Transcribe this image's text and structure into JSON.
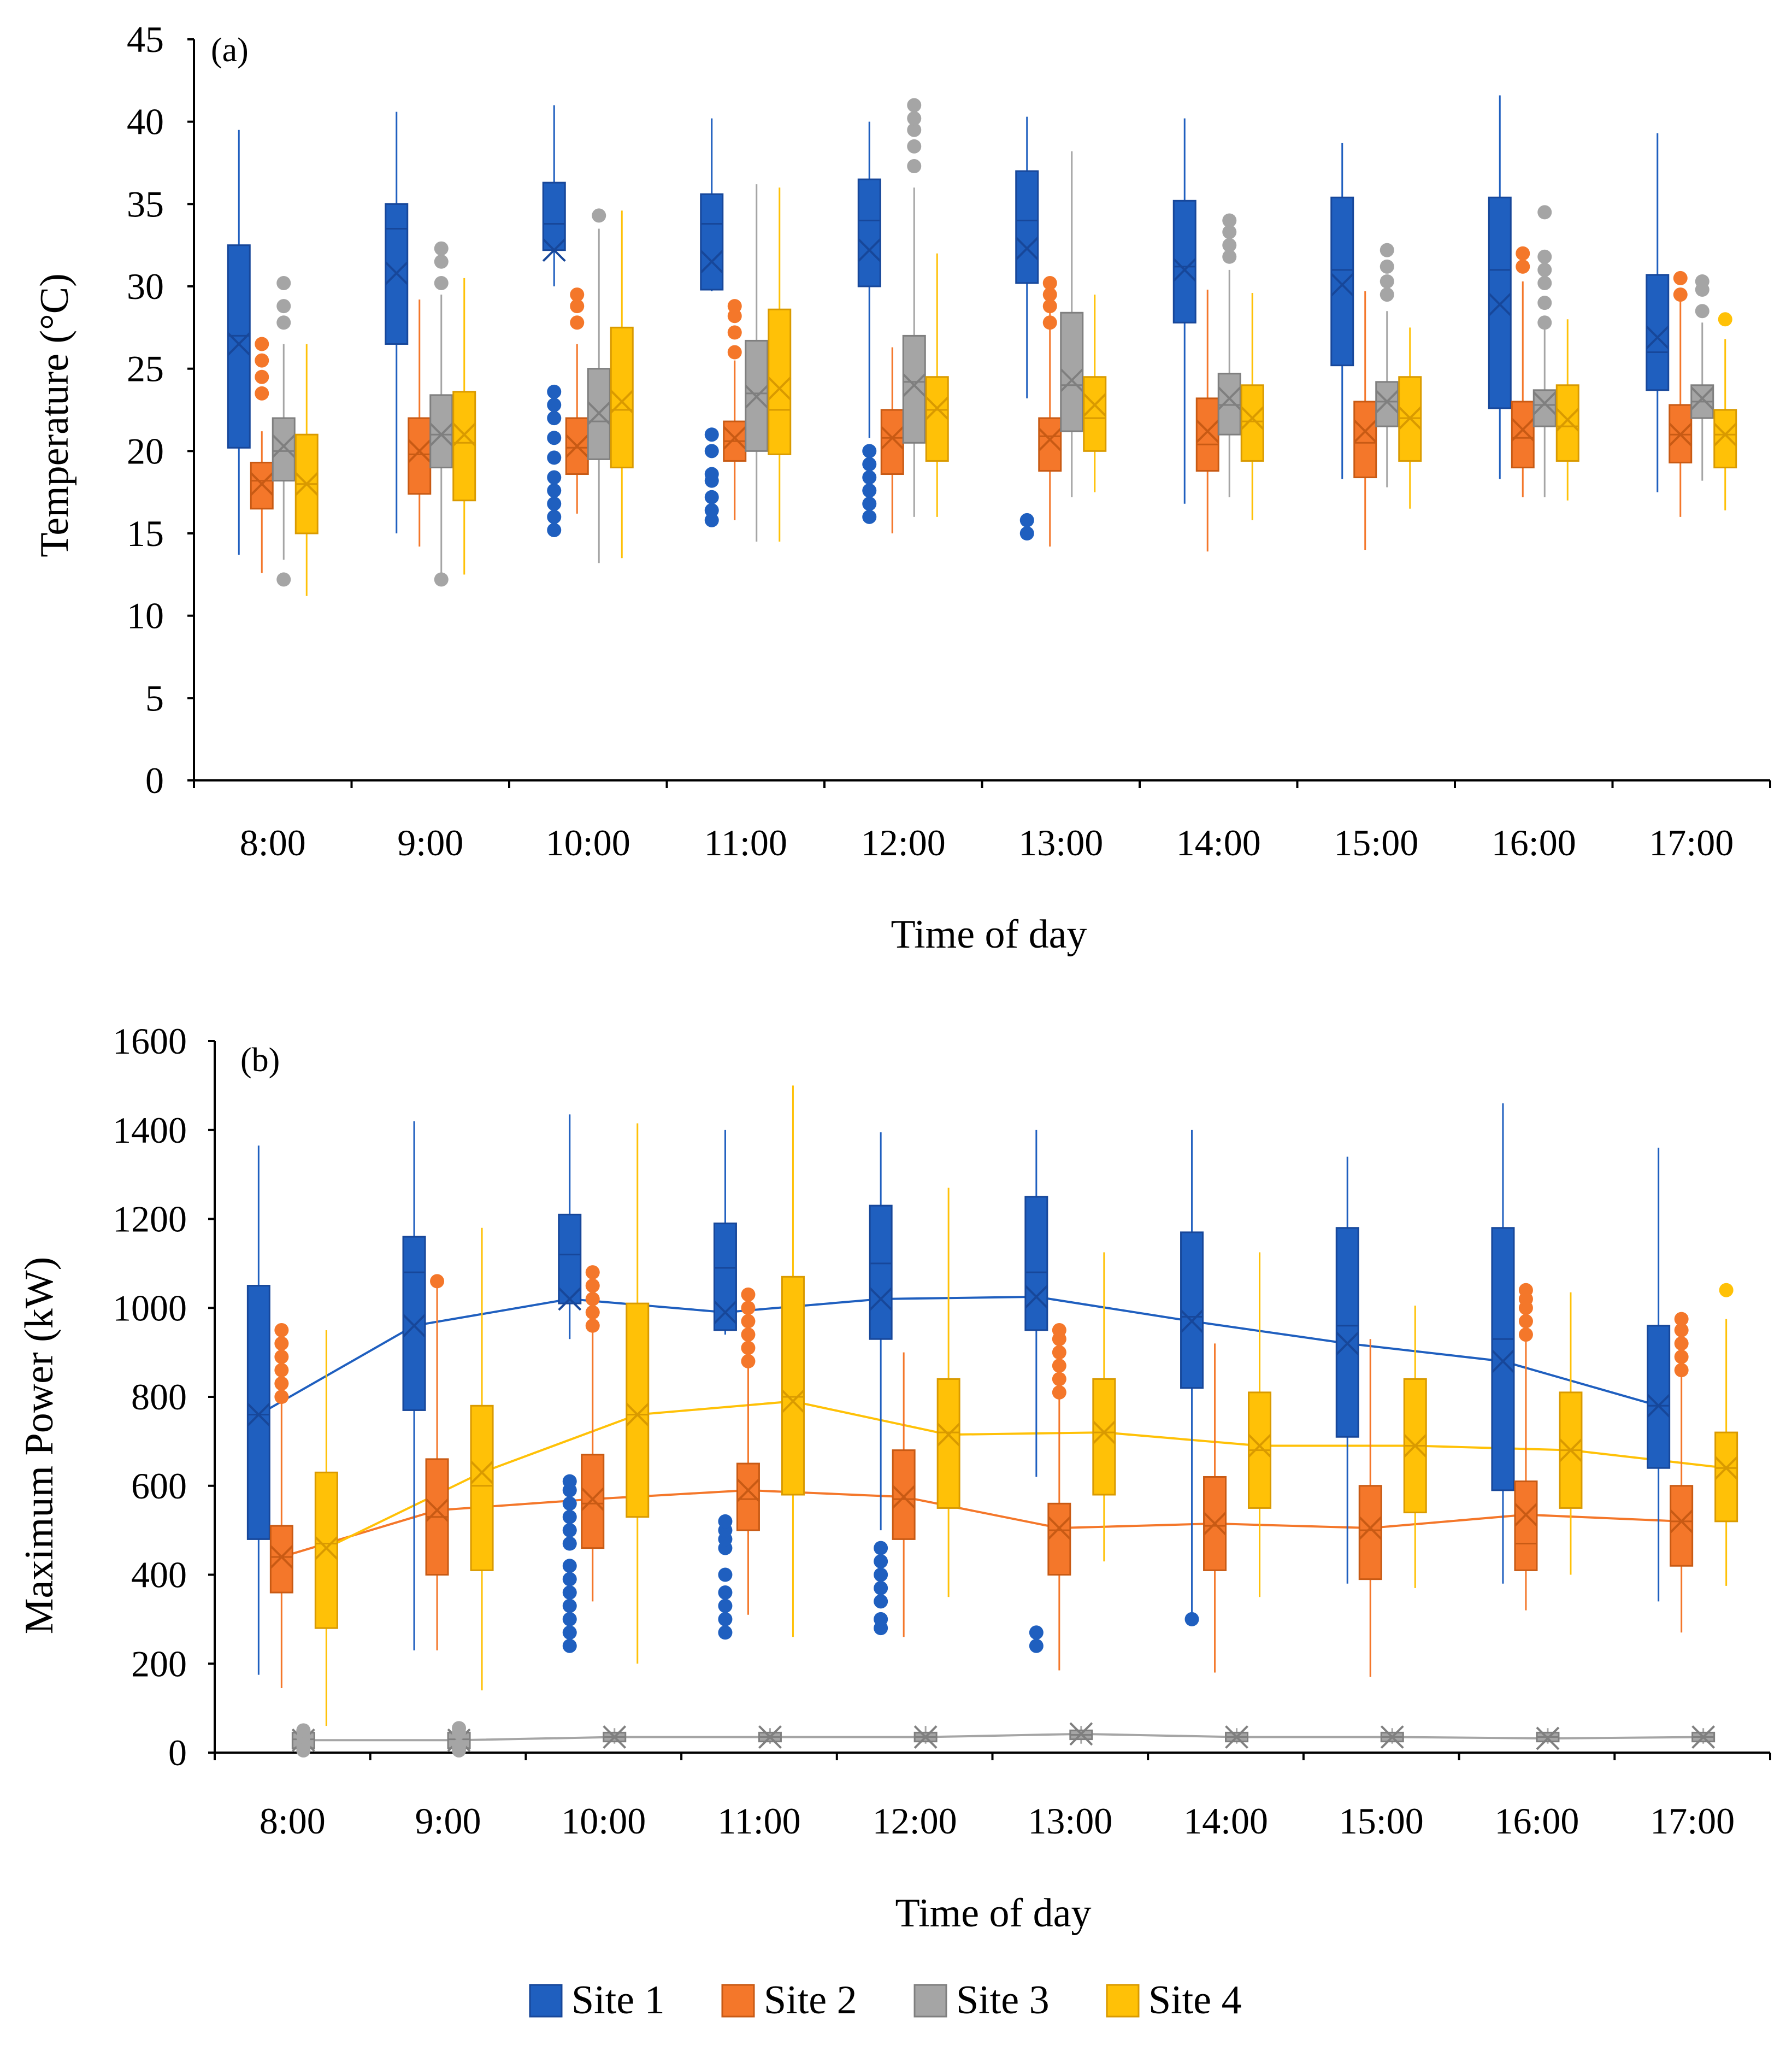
{
  "chart_data": [
    {
      "type": "box",
      "panel_label": "(a)",
      "xlabel": "Time of day",
      "ylabel": "Temperature (°C)",
      "ylim": [
        0,
        45
      ],
      "yticks": [
        0,
        5,
        10,
        15,
        20,
        25,
        30,
        35,
        40,
        45
      ],
      "categories": [
        "8:00",
        "9:00",
        "10:00",
        "11:00",
        "12:00",
        "13:00",
        "14:00",
        "15:00",
        "16:00",
        "17:00"
      ],
      "mean_line": false,
      "series": [
        {
          "name": "Site 1",
          "whisker_low": [
            13.7,
            15.0,
            30.0,
            29.7,
            20.8,
            23.2,
            16.8,
            18.3,
            18.3,
            17.5
          ],
          "q1": [
            20.2,
            26.5,
            32.2,
            29.8,
            30.0,
            30.2,
            27.8,
            25.2,
            22.6,
            23.7
          ],
          "median": [
            27.0,
            33.5,
            33.8,
            33.8,
            34.0,
            34.0,
            31.2,
            31.0,
            31.0,
            26.0
          ],
          "q3": [
            32.5,
            35.0,
            36.3,
            35.6,
            36.5,
            37.0,
            35.2,
            35.4,
            35.4,
            30.7
          ],
          "whisker_high": [
            39.5,
            40.6,
            41.0,
            40.2,
            40.0,
            40.3,
            40.2,
            38.7,
            41.6,
            39.3
          ],
          "mean": [
            26.5,
            30.8,
            32.2,
            31.5,
            32.2,
            32.3,
            31.0,
            30.1,
            28.9,
            26.9
          ],
          "outliers": [
            [],
            [],
            [
              15.2,
              16.0,
              16.8,
              17.6,
              18.4,
              19.6,
              20.8,
              22.0,
              22.8,
              23.6
            ],
            [
              15.8,
              16.4,
              17.2,
              18.2,
              18.6,
              20.0,
              21.0
            ],
            [
              16.0,
              16.8,
              17.6,
              18.4,
              19.2,
              20.0
            ],
            [
              15.0,
              15.8
            ],
            [],
            [],
            [],
            []
          ]
        },
        {
          "name": "Site 2",
          "whisker_low": [
            12.6,
            14.2,
            16.2,
            15.8,
            15.0,
            14.2,
            13.9,
            14.0,
            17.2,
            16.0
          ],
          "q1": [
            16.5,
            17.4,
            18.6,
            19.4,
            18.6,
            18.8,
            18.8,
            18.4,
            19.0,
            19.3
          ],
          "median": [
            18.2,
            19.8,
            20.2,
            20.6,
            20.8,
            20.9,
            20.4,
            20.5,
            20.8,
            21.0
          ],
          "q3": [
            19.3,
            22.0,
            22.0,
            21.8,
            22.5,
            22.0,
            23.2,
            23.0,
            23.0,
            22.8
          ],
          "whisker_high": [
            21.2,
            29.2,
            26.5,
            25.5,
            26.3,
            28.5,
            29.8,
            29.7,
            30.3,
            29.8
          ],
          "mean": [
            18.0,
            20.0,
            20.3,
            20.8,
            20.8,
            20.7,
            21.2,
            21.2,
            21.3,
            21.0
          ],
          "outliers": [
            [
              23.5,
              24.5,
              25.5,
              26.5
            ],
            [],
            [
              27.8,
              28.8,
              29.5
            ],
            [
              26.0,
              27.2,
              28.2,
              28.8
            ],
            [],
            [
              27.8,
              28.8,
              29.5,
              30.2
            ],
            [],
            [],
            [
              31.2,
              32.0
            ],
            [
              29.5,
              30.5
            ]
          ]
        },
        {
          "name": "Site 3",
          "whisker_low": [
            13.4,
            12.2,
            13.2,
            14.5,
            16.0,
            17.2,
            17.2,
            17.8,
            17.2,
            18.2
          ],
          "q1": [
            18.2,
            19.0,
            19.5,
            20.0,
            20.5,
            21.2,
            21.0,
            21.5,
            21.5,
            22.0
          ],
          "median": [
            20.0,
            21.0,
            21.8,
            23.5,
            24.2,
            24.0,
            22.8,
            23.0,
            22.8,
            23.0
          ],
          "q3": [
            22.0,
            23.4,
            25.0,
            26.7,
            27.0,
            28.4,
            24.7,
            24.2,
            23.7,
            24.0
          ],
          "whisker_high": [
            26.5,
            29.5,
            33.5,
            36.2,
            36.0,
            38.2,
            31.0,
            28.5,
            27.5,
            27.8
          ],
          "mean": [
            20.3,
            21.0,
            22.3,
            23.3,
            24.0,
            24.3,
            23.2,
            23.0,
            22.9,
            23.2
          ],
          "outliers": [
            [
              12.2,
              27.8,
              28.8,
              30.2
            ],
            [
              12.2,
              30.2,
              31.5,
              32.3
            ],
            [
              34.3
            ],
            [],
            [
              37.3,
              38.5,
              39.5,
              40.2,
              41.0
            ],
            [],
            [
              31.8,
              32.5,
              33.3,
              34.0
            ],
            [
              29.5,
              30.3,
              31.2,
              32.2
            ],
            [
              27.8,
              29.0,
              30.2,
              31.0,
              31.8,
              34.5
            ],
            [
              28.5,
              29.8,
              30.3
            ]
          ]
        },
        {
          "name": "Site 4",
          "whisker_low": [
            11.2,
            12.5,
            13.5,
            14.5,
            16.0,
            17.5,
            15.8,
            16.5,
            17.0,
            16.4
          ],
          "q1": [
            15.0,
            17.0,
            19.0,
            19.8,
            19.4,
            20.0,
            19.4,
            19.4,
            19.4,
            19.0
          ],
          "median": [
            18.0,
            20.5,
            22.5,
            22.5,
            22.5,
            22.0,
            21.8,
            22.0,
            21.5,
            21.0
          ],
          "q3": [
            21.0,
            23.6,
            27.5,
            28.6,
            24.5,
            24.5,
            24.0,
            24.5,
            24.0,
            22.5
          ],
          "whisker_high": [
            26.5,
            30.5,
            34.6,
            36.0,
            32.0,
            29.5,
            29.6,
            27.5,
            28.0,
            26.8
          ],
          "mean": [
            18.0,
            21.0,
            23.0,
            23.8,
            22.6,
            22.8,
            22.0,
            22.0,
            21.9,
            21.0
          ],
          "outliers": [
            [],
            [],
            [],
            [],
            [],
            [],
            [],
            [],
            [],
            [
              28.0
            ]
          ]
        }
      ]
    },
    {
      "type": "box",
      "panel_label": "(b)",
      "xlabel": "Time of day",
      "ylabel": "Maximum Power (kW)",
      "ylim": [
        0,
        1600
      ],
      "yticks": [
        0,
        200,
        400,
        600,
        800,
        1000,
        1200,
        1400,
        1600
      ],
      "categories": [
        "8:00",
        "9:00",
        "10:00",
        "11:00",
        "12:00",
        "13:00",
        "14:00",
        "15:00",
        "16:00",
        "17:00"
      ],
      "mean_line": true,
      "series": [
        {
          "name": "Site 1",
          "whisker_low": [
            175,
            230,
            930,
            940,
            500,
            620,
            300,
            380,
            380,
            340
          ],
          "q1": [
            480,
            770,
            1010,
            950,
            930,
            950,
            820,
            710,
            590,
            640
          ],
          "median": [
            760,
            1080,
            1120,
            1090,
            1100,
            1080,
            980,
            960,
            930,
            780
          ],
          "q3": [
            1050,
            1160,
            1210,
            1190,
            1230,
            1250,
            1170,
            1180,
            1180,
            960
          ],
          "whisker_high": [
            1365,
            1420,
            1435,
            1400,
            1395,
            1400,
            1400,
            1340,
            1460,
            1360
          ],
          "mean": [
            760,
            960,
            1020,
            990,
            1020,
            1025,
            970,
            920,
            880,
            780
          ],
          "outliers": [
            [],
            [],
            [
              240,
              270,
              300,
              330,
              360,
              390,
              420,
              470,
              500,
              530,
              560,
              590,
              610
            ],
            [
              270,
              300,
              330,
              360,
              400,
              460,
              480,
              500,
              520
            ],
            [
              280,
              300,
              340,
              370,
              400,
              430,
              460
            ],
            [
              240,
              270
            ],
            [
              300
            ],
            [],
            [],
            []
          ]
        },
        {
          "name": "Site 2",
          "whisker_low": [
            145,
            230,
            340,
            310,
            260,
            185,
            180,
            170,
            320,
            270
          ],
          "q1": [
            360,
            400,
            460,
            500,
            480,
            400,
            410,
            390,
            410,
            420
          ],
          "median": [
            440,
            530,
            560,
            570,
            570,
            500,
            510,
            500,
            470,
            520
          ],
          "q3": [
            510,
            660,
            670,
            650,
            680,
            560,
            620,
            600,
            610,
            600
          ],
          "whisker_high": [
            890,
            1060,
            1010,
            950,
            900,
            950,
            920,
            930,
            1000,
            970
          ],
          "mean": [
            440,
            545,
            570,
            590,
            575,
            505,
            515,
            505,
            535,
            520
          ],
          "outliers": [
            [
              800,
              830,
              860,
              890,
              920,
              950
            ],
            [
              1060
            ],
            [
              960,
              990,
              1020,
              1050,
              1080
            ],
            [
              880,
              910,
              940,
              970,
              1000,
              1030
            ],
            [],
            [
              810,
              840,
              870,
              900,
              930,
              950
            ],
            [],
            [],
            [
              940,
              970,
              1000,
              1020,
              1040
            ],
            [
              860,
              890,
              920,
              950,
              975
            ]
          ]
        },
        {
          "name": "Site 3",
          "whisker_low": [
            0,
            0,
            20,
            20,
            20,
            20,
            20,
            20,
            20,
            20
          ],
          "q1": [
            10,
            10,
            25,
            25,
            25,
            30,
            25,
            25,
            25,
            25
          ],
          "median": [
            30,
            30,
            35,
            35,
            35,
            40,
            35,
            35,
            35,
            35
          ],
          "q3": [
            45,
            45,
            45,
            45,
            45,
            50,
            45,
            45,
            45,
            45
          ],
          "whisker_high": [
            50,
            50,
            55,
            55,
            60,
            60,
            55,
            55,
            55,
            55
          ],
          "mean": [
            28,
            28,
            35,
            35,
            35,
            42,
            35,
            35,
            32,
            35
          ],
          "outliers": [
            [
              5,
              15,
              35,
              50
            ],
            [
              5,
              15,
              45,
              55
            ],
            [],
            [],
            [],
            [],
            [],
            [],
            [],
            []
          ]
        },
        {
          "name": "Site 4",
          "whisker_low": [
            60,
            140,
            200,
            260,
            350,
            430,
            350,
            370,
            400,
            375
          ],
          "q1": [
            280,
            410,
            530,
            580,
            550,
            580,
            550,
            540,
            550,
            520
          ],
          "median": [
            470,
            600,
            760,
            800,
            720,
            720,
            680,
            690,
            680,
            640
          ],
          "q3": [
            630,
            780,
            1010,
            1070,
            840,
            840,
            810,
            840,
            810,
            720
          ],
          "whisker_high": [
            950,
            1180,
            1415,
            1500,
            1270,
            1125,
            1125,
            1005,
            1035,
            975
          ],
          "mean": [
            460,
            630,
            760,
            790,
            715,
            720,
            690,
            690,
            680,
            640
          ],
          "outliers": [
            [],
            [],
            [],
            [],
            [],
            [],
            [],
            [],
            [],
            [
              1040
            ]
          ]
        }
      ]
    }
  ],
  "legend": {
    "items": [
      {
        "label": "Site 1",
        "color": "#1F5FBF",
        "edge": "#17479A"
      },
      {
        "label": "Site 2",
        "color": "#F4772A",
        "edge": "#C85A14"
      },
      {
        "label": "Site 3",
        "color": "#A5A5A5",
        "edge": "#7F7F7F"
      },
      {
        "label": "Site 4",
        "color": "#FFC107",
        "edge": "#D99A00"
      }
    ]
  }
}
